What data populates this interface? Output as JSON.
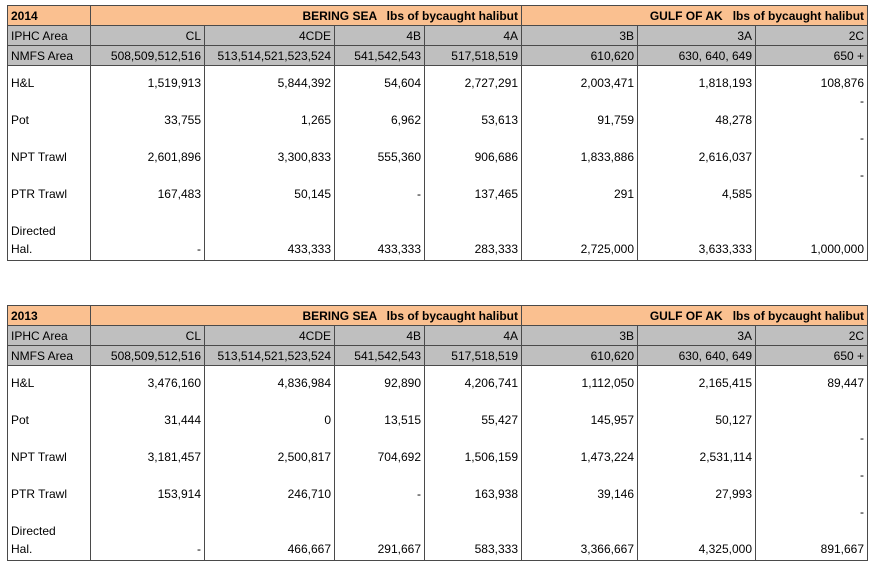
{
  "tables": [
    {
      "year": "2014",
      "bering_title": "BERING SEA   lbs of bycaught halibut",
      "gulf_title": "GULF OF AK   lbs of bycaught halibut",
      "ipha_label": "IPHC Area",
      "ipha": [
        "CL",
        "4CDE",
        "4B",
        "4A",
        "3B",
        "3A",
        "2C"
      ],
      "nmfs_label": "NMFS Area",
      "nmfs": [
        "508,509,512,516",
        "513,514,521,523,524",
        "541,542,543",
        "517,518,519",
        "610,620",
        "630, 640, 649",
        "650 +"
      ],
      "rows": [
        {
          "label": "H&L",
          "values": [
            "1,519,913",
            "5,844,392",
            "54,604",
            "2,727,291",
            "2,003,471",
            "1,818,193",
            "108,876"
          ],
          "dash2c": "-"
        },
        {
          "label": "Pot",
          "values": [
            "33,755",
            "1,265",
            "6,962",
            "53,613",
            "91,759",
            "48,278",
            ""
          ],
          "dash2c": "-"
        },
        {
          "label": "NPT Trawl",
          "values": [
            "2,601,896",
            "3,300,833",
            "555,360",
            "906,686",
            "1,833,886",
            "2,616,037",
            ""
          ],
          "dash2c": "-"
        },
        {
          "label": "PTR Trawl",
          "values": [
            "167,483",
            "50,145",
            "-",
            "137,465",
            "291",
            "4,585",
            ""
          ],
          "dash2c": ""
        },
        {
          "label": "Directed Hal.",
          "values": [
            "-",
            "433,333",
            "433,333",
            "283,333",
            "2,725,000",
            "3,633,333",
            "1,000,000"
          ],
          "dash2c": ""
        }
      ]
    },
    {
      "year": "2013",
      "bering_title": "BERING SEA   lbs of bycaught halibut",
      "gulf_title": "GULF OF AK   lbs of bycaught halibut",
      "ipha_label": "IPHC Area",
      "ipha": [
        "CL",
        "4CDE",
        "4B",
        "4A",
        "3B",
        "3A",
        "2C"
      ],
      "nmfs_label": "NMFS Area",
      "nmfs": [
        "508,509,512,516",
        "513,514,521,523,524",
        "541,542,543",
        "517,518,519",
        "610,620",
        "630, 640, 649",
        "650 +"
      ],
      "rows": [
        {
          "label": "H&L",
          "values": [
            "3,476,160",
            "4,836,984",
            "92,890",
            "4,206,741",
            "1,112,050",
            "2,165,415",
            "89,447"
          ],
          "dash2c": ""
        },
        {
          "label": "Pot",
          "values": [
            "31,444",
            "0",
            "13,515",
            "55,427",
            "145,957",
            "50,127",
            ""
          ],
          "dash2c": "-"
        },
        {
          "label": "NPT Trawl",
          "values": [
            "3,181,457",
            "2,500,817",
            "704,692",
            "1,506,159",
            "1,473,224",
            "2,531,114",
            ""
          ],
          "dash2c": "-"
        },
        {
          "label": "PTR Trawl",
          "values": [
            "153,914",
            "246,710",
            "-",
            "163,938",
            "39,146",
            "27,993",
            ""
          ],
          "dash2c": "-"
        },
        {
          "label": "Directed Hal.",
          "values": [
            "-",
            "466,667",
            "291,667",
            "583,333",
            "3,366,667",
            "4,325,000",
            "891,667"
          ],
          "dash2c": ""
        }
      ]
    }
  ]
}
